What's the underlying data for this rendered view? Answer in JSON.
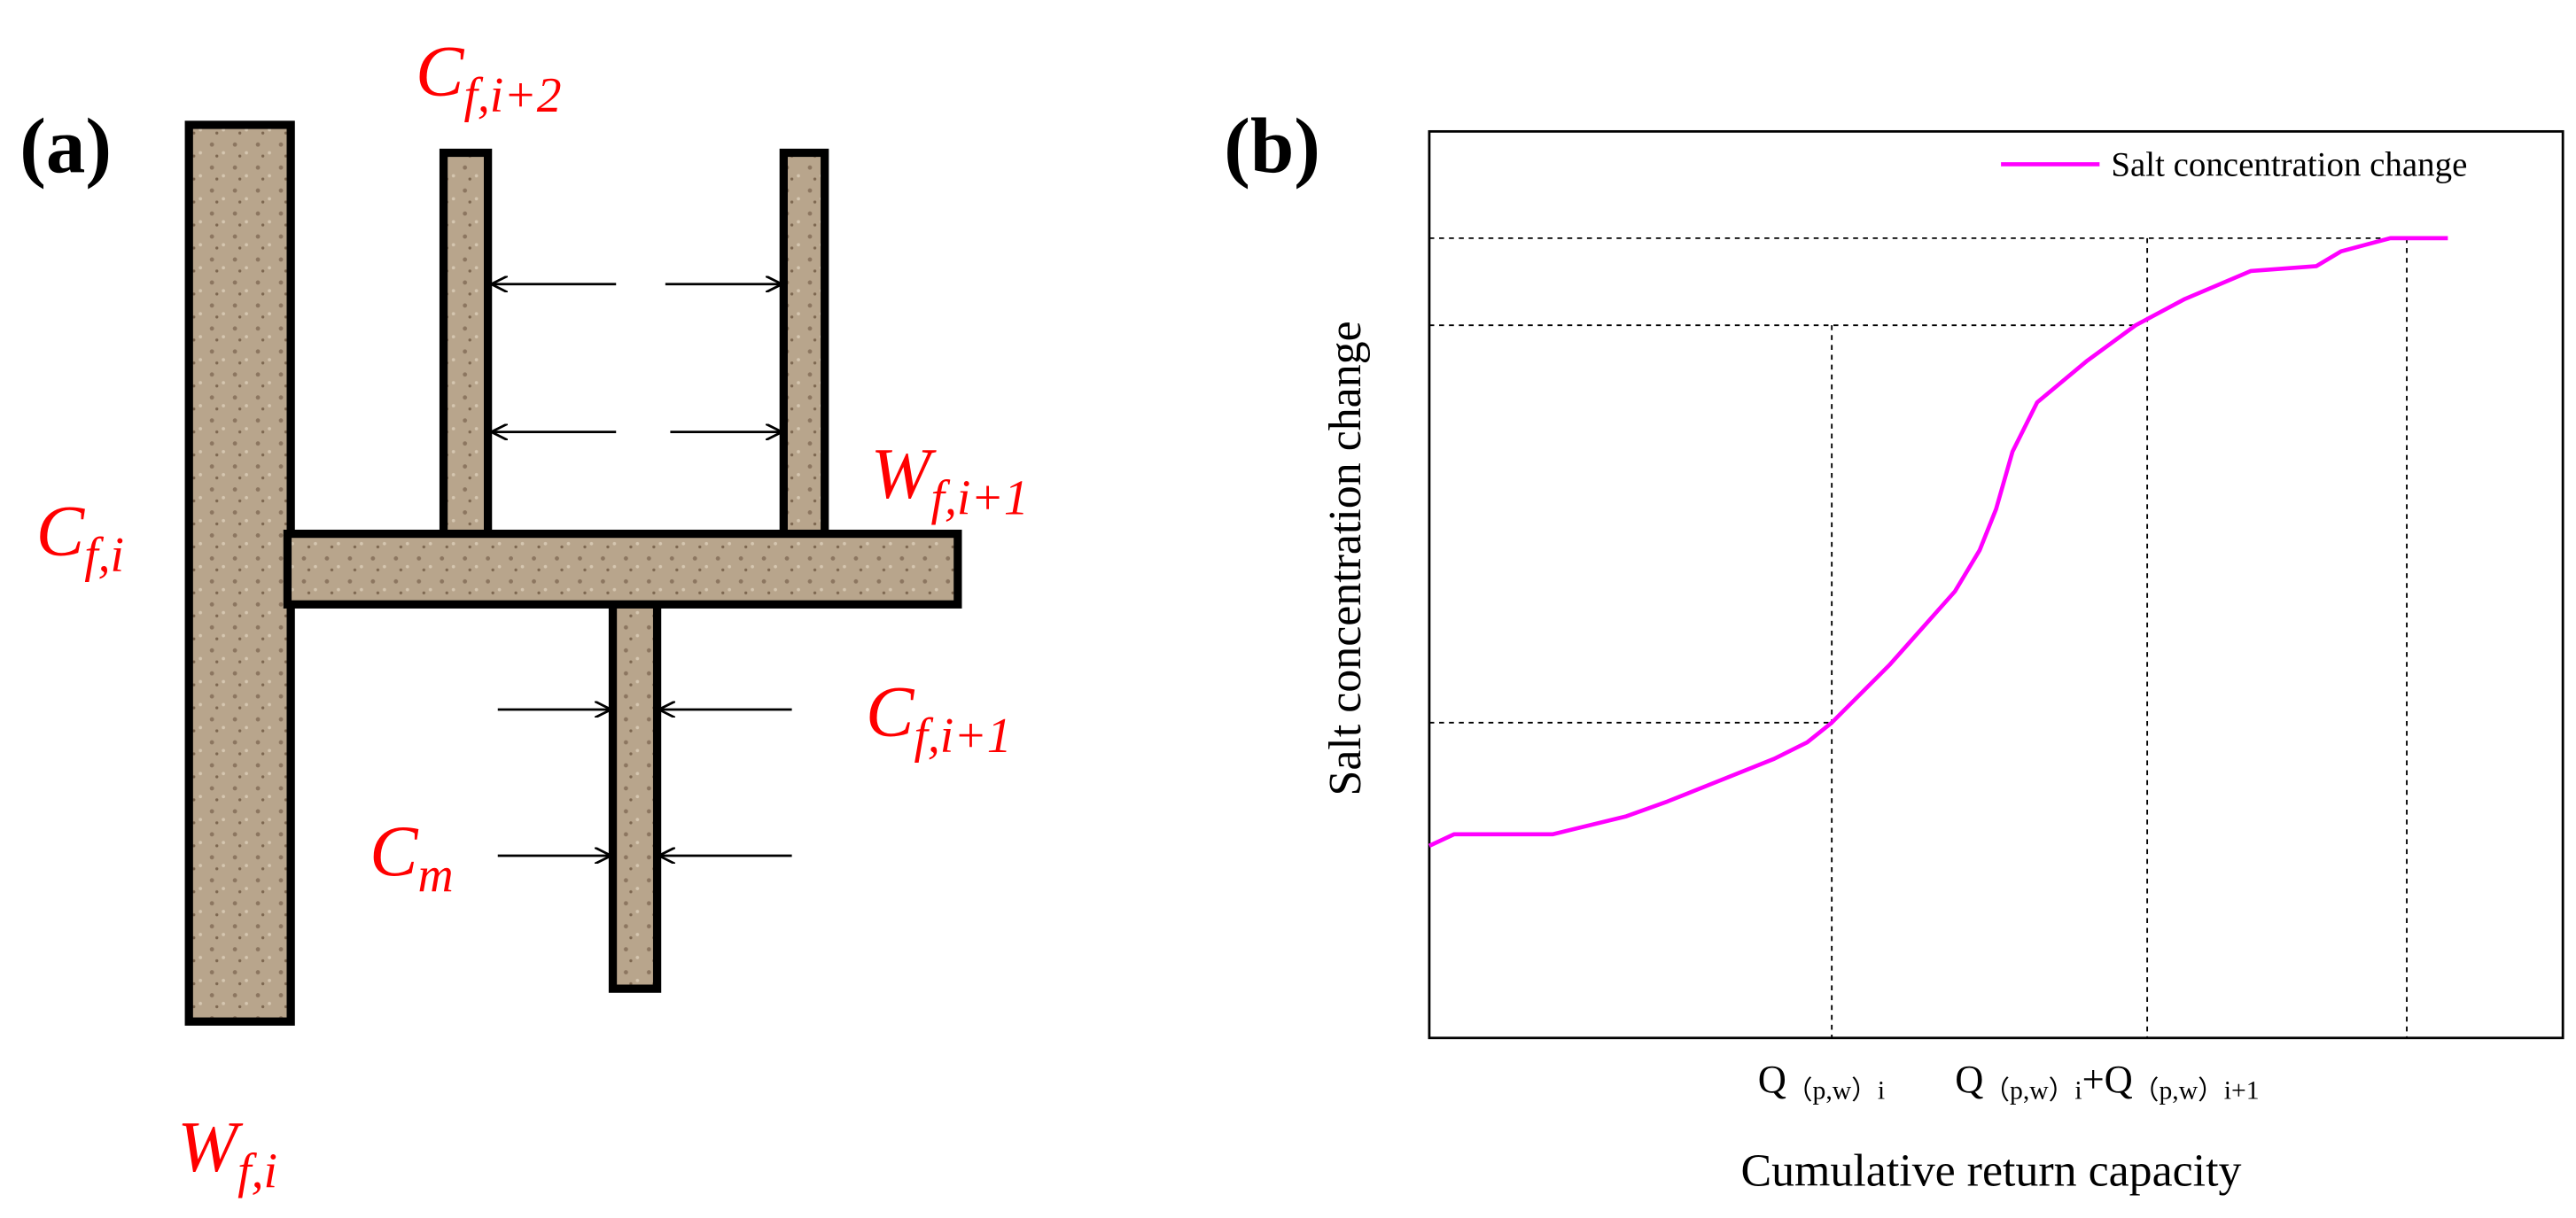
{
  "panel_a": {
    "label": "(a)",
    "annotations": [
      {
        "base": "C",
        "sub": "f,i+2"
      },
      {
        "base": "C",
        "sub": "f,i"
      },
      {
        "base": "W",
        "sub": "f,i+1"
      },
      {
        "base": "C",
        "sub": "f,i+1"
      },
      {
        "base": "C",
        "sub": "m"
      },
      {
        "base": "W",
        "sub": "f,i"
      }
    ]
  },
  "panel_b": {
    "label": "(b)",
    "legend": "Salt concentration change",
    "y_axis_label": "Salt concentration change",
    "x_axis_label": "Cumulative return capacity",
    "x_markers": [
      [
        "Q",
        "（p,w）",
        "i"
      ],
      [
        "Q",
        "（p,w）",
        "i",
        "+Q",
        "（p,w）",
        "i+1"
      ]
    ]
  }
}
